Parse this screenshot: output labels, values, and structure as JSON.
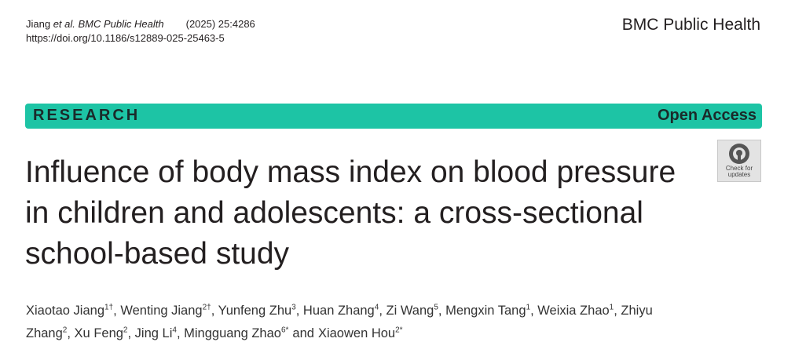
{
  "header": {
    "citation_author": "Jiang",
    "citation_journal": "et al. BMC Public Health",
    "citation_volume": "(2025) 25:4286",
    "doi": "https://doi.org/10.1186/s12889-025-25463-5",
    "journal": "BMC Public Health"
  },
  "banner": {
    "article_type": "RESEARCH",
    "access": "Open Access"
  },
  "badge": {
    "line1": "Check for",
    "line2": "updates"
  },
  "title": "Influence of body mass index on blood pressure in children and adolescents: a cross-sectional school-based study",
  "authors": [
    {
      "name": "Xiaotao Jiang",
      "affiliation": "1†"
    },
    {
      "name": "Wenting Jiang",
      "affiliation": "2†"
    },
    {
      "name": "Yunfeng Zhu",
      "affiliation": "3"
    },
    {
      "name": "Huan Zhang",
      "affiliation": "4"
    },
    {
      "name": "Zi Wang",
      "affiliation": "5"
    },
    {
      "name": "Mengxin Tang",
      "affiliation": "1"
    },
    {
      "name": "Weixia Zhao",
      "affiliation": "1"
    },
    {
      "name": "Zhiyu Zhang",
      "affiliation": "2"
    },
    {
      "name": "Xu Feng",
      "affiliation": "2"
    },
    {
      "name": "Jing Li",
      "affiliation": "4"
    },
    {
      "name": "Mingguang Zhao",
      "affiliation": "6*"
    },
    {
      "name": "Xiaowen Hou",
      "affiliation": "2*"
    }
  ],
  "author_separators": [
    ",",
    ",",
    ",",
    ",",
    ",",
    ",",
    ",",
    ",",
    ",",
    ",",
    "and"
  ]
}
